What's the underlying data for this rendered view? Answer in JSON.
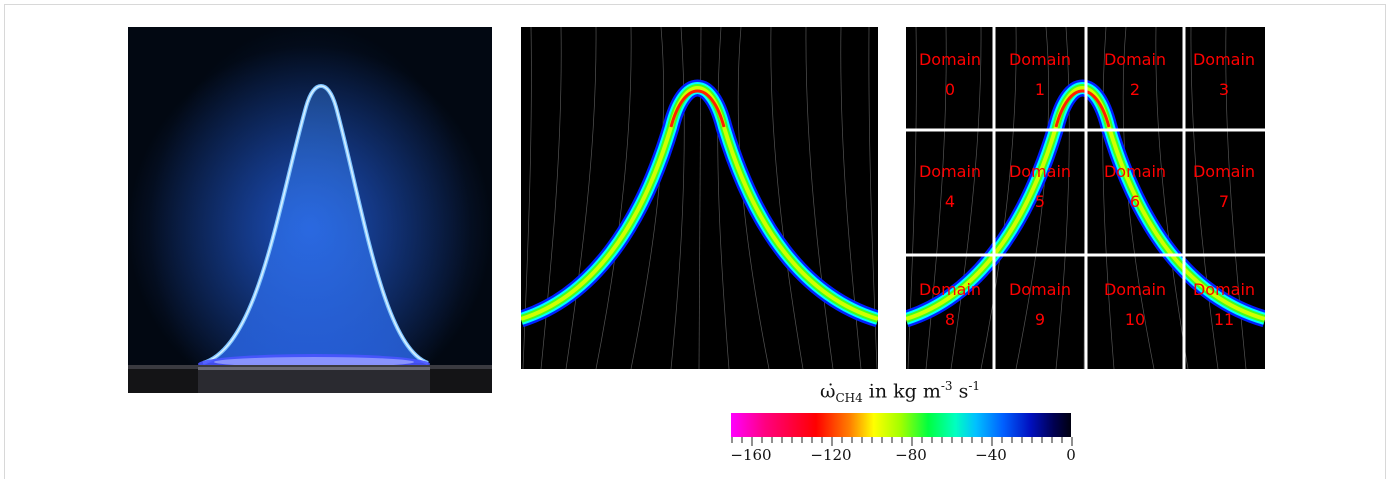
{
  "figure": {
    "domain_labels": [
      {
        "word": "Domain",
        "num": "0"
      },
      {
        "word": "Domain",
        "num": "1"
      },
      {
        "word": "Domain",
        "num": "2"
      },
      {
        "word": "Domain",
        "num": "3"
      },
      {
        "word": "Domain",
        "num": "4"
      },
      {
        "word": "Domain",
        "num": "5"
      },
      {
        "word": "Domain",
        "num": "6"
      },
      {
        "word": "Domain",
        "num": "7"
      },
      {
        "word": "Domain",
        "num": "8"
      },
      {
        "word": "Domain",
        "num": "9"
      },
      {
        "word": "Domain",
        "num": "10"
      },
      {
        "word": "Domain",
        "num": "11"
      }
    ],
    "colorbar": {
      "title_symbol": "ω̇",
      "title_sub": "CH4",
      "title_mid": " in kg m",
      "title_exp1": "-3",
      "title_unit2": " s",
      "title_exp2": "-1",
      "ticks": [
        "−160",
        "−120",
        "−80",
        "−40",
        "0"
      ],
      "min": -170,
      "max": 0
    },
    "colors": {
      "flame_photo": "#3a8cff",
      "reaction_outer": "#0000ff",
      "reaction_mid": "#00ff00",
      "reaction_inner": "#ff0000",
      "domain_text": "#ff0000",
      "grid_lines": "#ffffff"
    }
  }
}
